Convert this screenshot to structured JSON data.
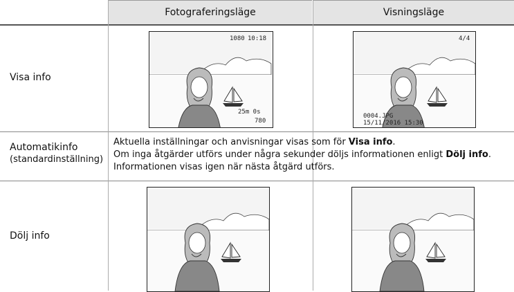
{
  "header": {
    "columns": [
      "Fotograferingsläge",
      "Visningsläge"
    ]
  },
  "rows": [
    {
      "label": "Visa info",
      "shooting_overlay": [
        "1080",
        "10:18",
        "25m 0s",
        "780"
      ],
      "playback_overlay": [
        "4/4",
        "0004.JPG",
        "15/11/2016 15:30"
      ]
    },
    {
      "label_lines": [
        "Automatikinfo",
        "(standardinställning)"
      ],
      "description": [
        [
          {
            "text": "Aktuella inställningar och anvisningar visas som för ",
            "bold": false
          },
          {
            "text": "Visa info",
            "bold": true
          },
          {
            "text": ".",
            "bold": false
          }
        ],
        [
          {
            "text": "Om inga åtgärder utförs under några sekunder döljs informationen enligt ",
            "bold": false
          },
          {
            "text": "Dölj info",
            "bold": true
          },
          {
            "text": ".",
            "bold": false
          }
        ],
        [
          {
            "text": "Informationen visas igen när nästa åtgärd utförs.",
            "bold": false
          }
        ]
      ]
    },
    {
      "label": "Dölj info"
    }
  ]
}
